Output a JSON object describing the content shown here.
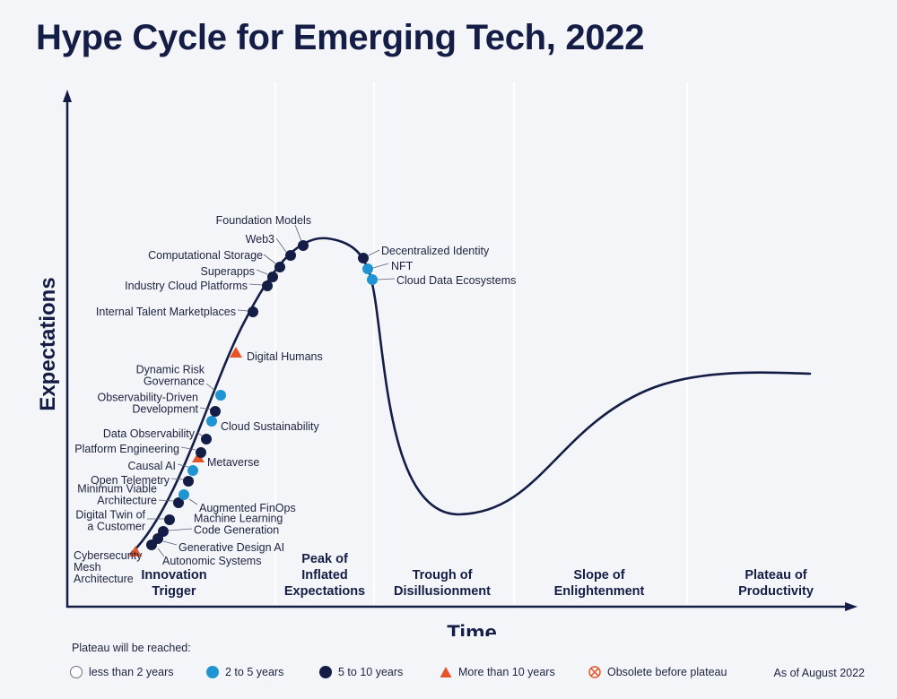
{
  "title": "Hype Cycle for Emerging Tech, 2022",
  "y_axis_label": "Expectations",
  "x_axis_label": "Time",
  "phases": [
    {
      "lines": [
        "Innovation",
        "Trigger"
      ]
    },
    {
      "lines": [
        "Peak of",
        "Inflated",
        "Expectations"
      ]
    },
    {
      "lines": [
        "Trough of",
        "Disillusionment"
      ]
    },
    {
      "lines": [
        "Slope of",
        "Enlightenment"
      ]
    },
    {
      "lines": [
        "Plateau of",
        "Productivity"
      ]
    }
  ],
  "technologies": [
    {
      "label": [
        "Cybersecurity",
        "Mesh",
        "Architecture"
      ],
      "category": "more_than_10"
    },
    {
      "label": [
        "Autonomic Systems"
      ],
      "category": "5_to_10"
    },
    {
      "label": [
        "Generative Design AI"
      ],
      "category": "5_to_10"
    },
    {
      "label": [
        "Machine Learning",
        "Code Generation"
      ],
      "category": "5_to_10"
    },
    {
      "label": [
        "Digital Twin of",
        "a Customer"
      ],
      "category": "5_to_10"
    },
    {
      "label": [
        "Minimum Viable",
        "Architecture"
      ],
      "category": "5_to_10"
    },
    {
      "label": [
        "Augmented FinOps"
      ],
      "category": "2_to_5"
    },
    {
      "label": [
        "Open Telemetry"
      ],
      "category": "5_to_10"
    },
    {
      "label": [
        "Causal AI"
      ],
      "category": "2_to_5"
    },
    {
      "label": [
        "Metaverse"
      ],
      "category": "more_than_10"
    },
    {
      "label": [
        "Platform Engineering"
      ],
      "category": "5_to_10"
    },
    {
      "label": [
        "Data Observability"
      ],
      "category": "5_to_10"
    },
    {
      "label": [
        "Cloud Sustainability"
      ],
      "category": "2_to_5"
    },
    {
      "label": [
        "Observability-Driven",
        "Development"
      ],
      "category": "5_to_10"
    },
    {
      "label": [
        "Dynamic Risk",
        "Governance"
      ],
      "category": "2_to_5"
    },
    {
      "label": [
        "Digital Humans"
      ],
      "category": "more_than_10"
    },
    {
      "label": [
        "Internal Talent Marketplaces"
      ],
      "category": "5_to_10"
    },
    {
      "label": [
        "Industry Cloud Platforms"
      ],
      "category": "5_to_10"
    },
    {
      "label": [
        "Superapps"
      ],
      "category": "5_to_10"
    },
    {
      "label": [
        "Computational Storage"
      ],
      "category": "5_to_10"
    },
    {
      "label": [
        "Web3"
      ],
      "category": "5_to_10"
    },
    {
      "label": [
        "Foundation Models"
      ],
      "category": "5_to_10"
    },
    {
      "label": [
        "Decentralized Identity"
      ],
      "category": "5_to_10"
    },
    {
      "label": [
        "NFT"
      ],
      "category": "2_to_5"
    },
    {
      "label": [
        "Cloud Data Ecosystems"
      ],
      "category": "2_to_5"
    }
  ],
  "legend": {
    "heading": "Plateau will be reached:",
    "items": [
      {
        "key": "less_than_2",
        "label": "less than 2 years",
        "symbol": "hollow-circle",
        "color": "#ffffff"
      },
      {
        "key": "2_to_5",
        "label": "2 to 5 years",
        "symbol": "circle",
        "color": "#1e94d2"
      },
      {
        "key": "5_to_10",
        "label": "5 to 10 years",
        "symbol": "circle",
        "color": "#141d45"
      },
      {
        "key": "more_than_10",
        "label": "More than 10 years",
        "symbol": "triangle",
        "color": "#e6542a"
      },
      {
        "key": "obsolete",
        "label": "Obsolete before plateau",
        "symbol": "crossed-circle",
        "color": "#e6542a"
      }
    ]
  },
  "as_of": "As of August 2022",
  "colors": {
    "navy": "#141d45",
    "blue": "#1e94d2",
    "orange": "#e6542a",
    "divider": "#ffffff"
  }
}
